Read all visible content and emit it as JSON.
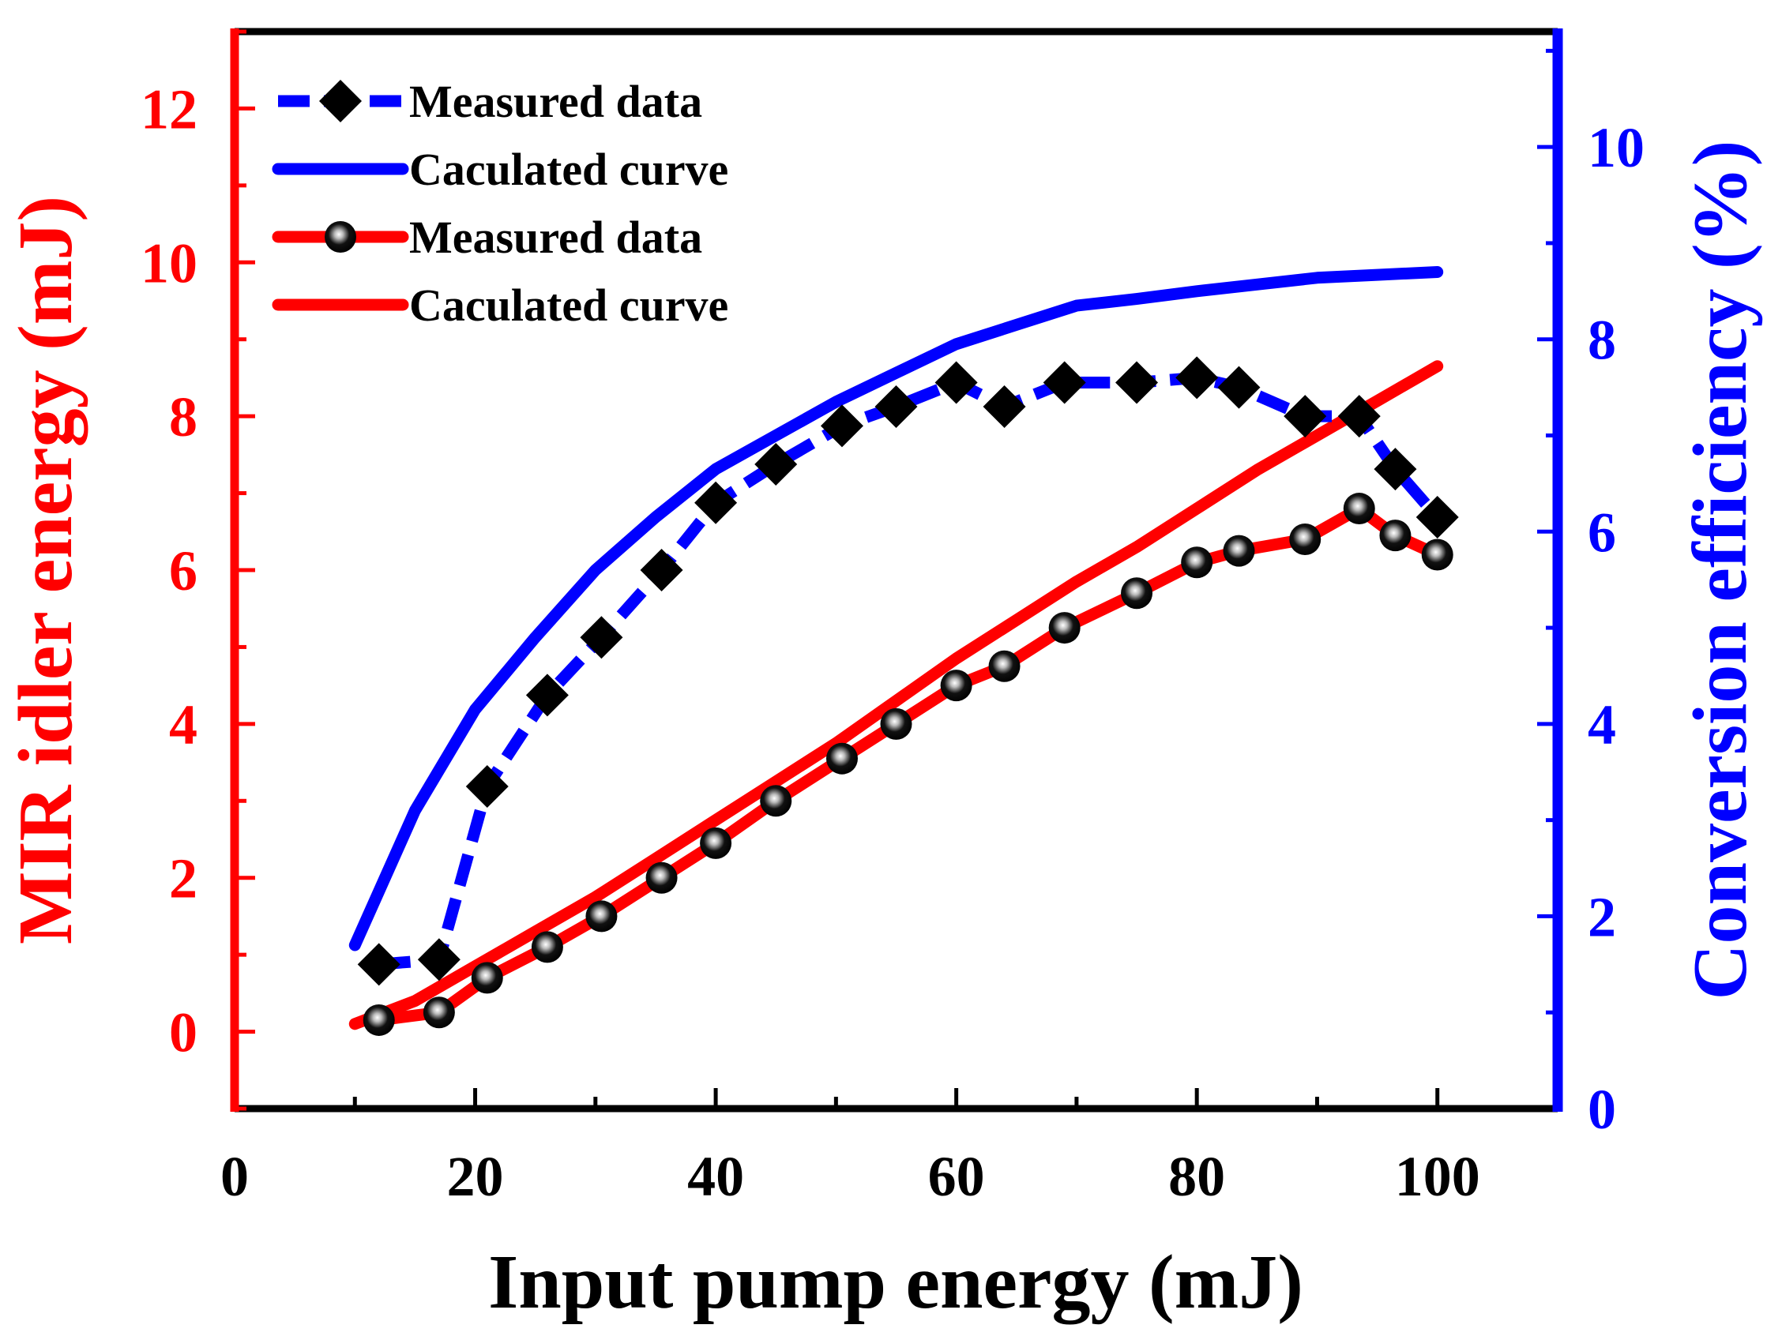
{
  "chart_data": {
    "type": "line",
    "title": "",
    "xlabel": "Input pump energy (mJ)",
    "ylabel_left": "MIR idler energy (mJ)",
    "ylabel_right": "Conversion efficiency (%)",
    "xlim": [
      0,
      110
    ],
    "ylim_left": [
      -1,
      13
    ],
    "ylim_right": [
      0,
      11.2
    ],
    "x_ticks": [
      "0",
      "20",
      "40",
      "60",
      "80",
      "100"
    ],
    "x_tick_values": [
      0,
      20,
      40,
      60,
      80,
      100
    ],
    "y_left_ticks": [
      "0",
      "2",
      "4",
      "6",
      "8",
      "10",
      "12"
    ],
    "y_left_tick_values": [
      0,
      2,
      4,
      6,
      8,
      10,
      12
    ],
    "y_right_ticks": [
      "0",
      "2",
      "4",
      "6",
      "8",
      "10"
    ],
    "y_right_tick_values": [
      0,
      2,
      4,
      6,
      8,
      10
    ],
    "colors": {
      "left_axis": "#ff0000",
      "right_axis": "#0000ff",
      "frame": "#000000"
    },
    "legend": {
      "position": "top-left",
      "entries": [
        {
          "label": "Measured data",
          "series": "efficiency_measured"
        },
        {
          "label": "Caculated curve",
          "series": "efficiency_calculated"
        },
        {
          "label": "Measured data",
          "series": "idler_measured"
        },
        {
          "label": "Caculated curve",
          "series": "idler_calculated"
        }
      ]
    },
    "series": [
      {
        "id": "efficiency_measured",
        "name": "Measured data",
        "axis": "right",
        "color": "#0000ff",
        "marker": "diamond",
        "marker_color": "#000000",
        "line_style": "dashed",
        "x": [
          12,
          17,
          21,
          26,
          30.5,
          35.5,
          40,
          45,
          50.5,
          55,
          60,
          64,
          69,
          75,
          80,
          83.5,
          89,
          93.5,
          96.5,
          100
        ],
        "values": [
          1.5,
          1.55,
          3.35,
          4.3,
          4.9,
          5.6,
          6.3,
          6.7,
          7.1,
          7.3,
          7.55,
          7.3,
          7.55,
          7.55,
          7.6,
          7.5,
          7.2,
          7.2,
          6.65,
          6.15
        ]
      },
      {
        "id": "efficiency_calculated",
        "name": "Caculated curve",
        "axis": "right",
        "color": "#0000ff",
        "marker": "none",
        "line_style": "solid",
        "x": [
          10,
          15,
          20,
          25,
          30,
          35,
          40,
          45,
          50,
          55,
          60,
          65,
          70,
          75,
          80,
          85,
          90,
          95,
          100
        ],
        "values": [
          1.7,
          3.1,
          4.15,
          4.9,
          5.6,
          6.15,
          6.65,
          7.0,
          7.35,
          7.65,
          7.95,
          8.15,
          8.35,
          8.42,
          8.5,
          8.57,
          8.64,
          8.67,
          8.7
        ]
      },
      {
        "id": "idler_measured",
        "name": "Measured data",
        "axis": "left",
        "color": "#ff0000",
        "marker": "sphere",
        "marker_color": "#000000",
        "line_style": "solid",
        "x": [
          12,
          17,
          21,
          26,
          30.5,
          35.5,
          40,
          45,
          50.5,
          55,
          60,
          64,
          69,
          75,
          80,
          83.5,
          89,
          93.5,
          96.5,
          100
        ],
        "values": [
          0.15,
          0.25,
          0.7,
          1.1,
          1.5,
          2.0,
          2.45,
          3.0,
          3.55,
          4.0,
          4.5,
          4.75,
          5.25,
          5.7,
          6.1,
          6.25,
          6.4,
          6.8,
          6.45,
          6.2
        ]
      },
      {
        "id": "idler_calculated",
        "name": "Caculated curve",
        "axis": "left",
        "color": "#ff0000",
        "marker": "none",
        "line_style": "solid",
        "x": [
          10,
          15,
          20,
          25,
          30,
          35,
          40,
          45,
          50,
          55,
          60,
          65,
          70,
          75,
          80,
          85,
          90,
          95,
          100
        ],
        "values": [
          0.1,
          0.4,
          0.85,
          1.3,
          1.75,
          2.25,
          2.75,
          3.25,
          3.75,
          4.3,
          4.85,
          5.35,
          5.85,
          6.3,
          6.8,
          7.3,
          7.75,
          8.2,
          8.65
        ]
      }
    ]
  }
}
